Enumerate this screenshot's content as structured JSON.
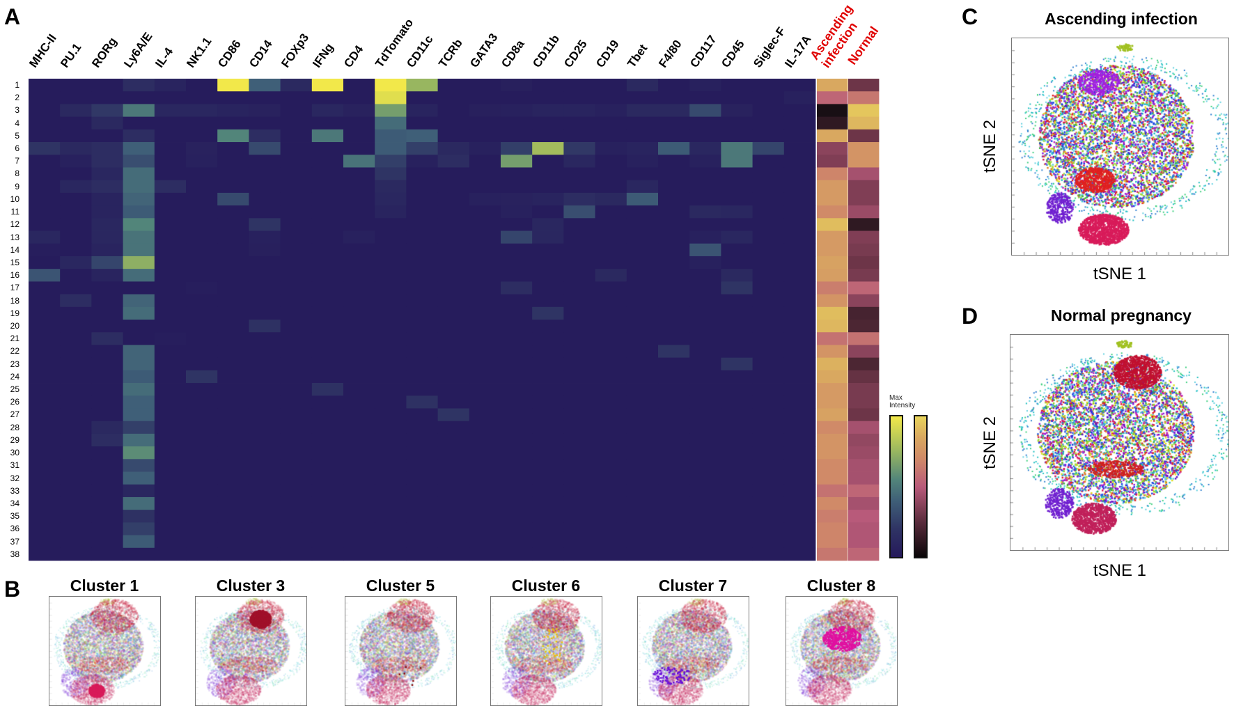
{
  "panels": {
    "a": "A",
    "b": "B",
    "c": "C",
    "d": "D"
  },
  "chart_data": [
    {
      "type": "heatmap",
      "title": "",
      "columns": [
        "MHC-II",
        "PU.1",
        "RORg",
        "Ly6A/E",
        "IL-4",
        "NK1.1",
        "CD86",
        "CD14",
        "FOXp3",
        "IFNg",
        "CD4",
        "TdTomato",
        "CD11c",
        "TCRb",
        "GATA3",
        "CD8a",
        "CD11b",
        "CD25",
        "CD19",
        "Tbet",
        "F4/80",
        "CD117",
        "CD45",
        "Siglec-F",
        "IL-17A"
      ],
      "rows": [
        "1",
        "2",
        "3",
        "4",
        "5",
        "6",
        "7",
        "8",
        "9",
        "10",
        "11",
        "12",
        "13",
        "14",
        "15",
        "16",
        "17",
        "18",
        "19",
        "20",
        "21",
        "22",
        "23",
        "24",
        "25",
        "26",
        "27",
        "28",
        "29",
        "30",
        "31",
        "32",
        "33",
        "34",
        "35",
        "36",
        "37",
        "38"
      ],
      "value_range": [
        0,
        1
      ],
      "baseline_value": 0.02,
      "cells_row_col_value": [
        [
          1,
          3,
          0.15
        ],
        [
          1,
          4,
          0.08
        ],
        [
          1,
          6,
          1.0
        ],
        [
          1,
          7,
          0.4
        ],
        [
          1,
          8,
          0.12
        ],
        [
          1,
          9,
          1.0
        ],
        [
          1,
          11,
          1.0
        ],
        [
          1,
          12,
          0.75
        ],
        [
          1,
          15,
          0.05
        ],
        [
          1,
          19,
          0.12
        ],
        [
          1,
          21,
          0.06
        ],
        [
          2,
          11,
          0.95
        ],
        [
          2,
          24,
          0.06
        ],
        [
          3,
          1,
          0.12
        ],
        [
          3,
          2,
          0.22
        ],
        [
          3,
          3,
          0.5
        ],
        [
          3,
          4,
          0.1
        ],
        [
          3,
          5,
          0.1
        ],
        [
          3,
          6,
          0.08
        ],
        [
          3,
          7,
          0.07
        ],
        [
          3,
          9,
          0.1
        ],
        [
          3,
          10,
          0.07
        ],
        [
          3,
          11,
          0.65
        ],
        [
          3,
          12,
          0.08
        ],
        [
          3,
          14,
          0.05
        ],
        [
          3,
          15,
          0.06
        ],
        [
          3,
          16,
          0.08
        ],
        [
          3,
          17,
          0.08
        ],
        [
          3,
          18,
          0.06
        ],
        [
          3,
          19,
          0.12
        ],
        [
          3,
          20,
          0.12
        ],
        [
          3,
          21,
          0.3
        ],
        [
          3,
          22,
          0.07
        ],
        [
          4,
          2,
          0.12
        ],
        [
          4,
          11,
          0.45
        ],
        [
          5,
          3,
          0.15
        ],
        [
          5,
          6,
          0.55
        ],
        [
          5,
          7,
          0.15
        ],
        [
          5,
          9,
          0.5
        ],
        [
          5,
          11,
          0.38
        ],
        [
          5,
          12,
          0.4
        ],
        [
          6,
          0,
          0.2
        ],
        [
          6,
          1,
          0.12
        ],
        [
          6,
          2,
          0.15
        ],
        [
          6,
          3,
          0.4
        ],
        [
          6,
          5,
          0.07
        ],
        [
          6,
          7,
          0.3
        ],
        [
          6,
          11,
          0.38
        ],
        [
          6,
          12,
          0.25
        ],
        [
          6,
          13,
          0.12
        ],
        [
          6,
          14,
          0.06
        ],
        [
          6,
          15,
          0.25
        ],
        [
          6,
          16,
          0.78
        ],
        [
          6,
          17,
          0.22
        ],
        [
          6,
          18,
          0.06
        ],
        [
          6,
          19,
          0.08
        ],
        [
          6,
          20,
          0.38
        ],
        [
          6,
          21,
          0.1
        ],
        [
          6,
          22,
          0.5
        ],
        [
          6,
          23,
          0.28
        ],
        [
          7,
          1,
          0.06
        ],
        [
          7,
          2,
          0.15
        ],
        [
          7,
          3,
          0.32
        ],
        [
          7,
          5,
          0.06
        ],
        [
          7,
          10,
          0.48
        ],
        [
          7,
          11,
          0.25
        ],
        [
          7,
          12,
          0.06
        ],
        [
          7,
          13,
          0.15
        ],
        [
          7,
          15,
          0.65
        ],
        [
          7,
          17,
          0.1
        ],
        [
          7,
          19,
          0.06
        ],
        [
          7,
          21,
          0.06
        ],
        [
          7,
          22,
          0.5
        ],
        [
          8,
          2,
          0.1
        ],
        [
          8,
          3,
          0.45
        ],
        [
          8,
          11,
          0.2
        ],
        [
          9,
          1,
          0.1
        ],
        [
          9,
          2,
          0.15
        ],
        [
          9,
          3,
          0.45
        ],
        [
          9,
          4,
          0.15
        ],
        [
          9,
          11,
          0.12
        ],
        [
          9,
          19,
          0.1
        ],
        [
          10,
          2,
          0.08
        ],
        [
          10,
          3,
          0.42
        ],
        [
          10,
          6,
          0.3
        ],
        [
          10,
          11,
          0.1
        ],
        [
          10,
          14,
          0.06
        ],
        [
          10,
          15,
          0.07
        ],
        [
          10,
          16,
          0.08
        ],
        [
          10,
          17,
          0.15
        ],
        [
          10,
          18,
          0.12
        ],
        [
          10,
          19,
          0.38
        ],
        [
          11,
          2,
          0.08
        ],
        [
          11,
          3,
          0.38
        ],
        [
          11,
          11,
          0.08
        ],
        [
          11,
          15,
          0.06
        ],
        [
          11,
          17,
          0.32
        ],
        [
          11,
          21,
          0.12
        ],
        [
          11,
          22,
          0.1
        ],
        [
          12,
          2,
          0.1
        ],
        [
          12,
          3,
          0.55
        ],
        [
          12,
          7,
          0.2
        ],
        [
          12,
          16,
          0.1
        ],
        [
          13,
          0,
          0.1
        ],
        [
          13,
          2,
          0.1
        ],
        [
          13,
          3,
          0.48
        ],
        [
          13,
          7,
          0.06
        ],
        [
          13,
          10,
          0.06
        ],
        [
          13,
          15,
          0.28
        ],
        [
          13,
          16,
          0.1
        ],
        [
          13,
          21,
          0.06
        ],
        [
          13,
          22,
          0.1
        ],
        [
          14,
          0,
          0.04
        ],
        [
          14,
          2,
          0.08
        ],
        [
          14,
          3,
          0.48
        ],
        [
          14,
          7,
          0.05
        ],
        [
          14,
          21,
          0.35
        ],
        [
          15,
          1,
          0.1
        ],
        [
          15,
          2,
          0.28
        ],
        [
          15,
          3,
          0.72
        ],
        [
          15,
          21,
          0.06
        ],
        [
          16,
          0,
          0.35
        ],
        [
          16,
          2,
          0.08
        ],
        [
          16,
          3,
          0.45
        ],
        [
          16,
          18,
          0.12
        ],
        [
          16,
          22,
          0.12
        ],
        [
          17,
          5,
          0.04
        ],
        [
          17,
          15,
          0.15
        ],
        [
          17,
          22,
          0.2
        ],
        [
          18,
          1,
          0.15
        ],
        [
          18,
          3,
          0.42
        ],
        [
          19,
          3,
          0.45
        ],
        [
          19,
          16,
          0.2
        ],
        [
          20,
          7,
          0.18
        ],
        [
          21,
          2,
          0.15
        ],
        [
          21,
          4,
          0.04
        ],
        [
          22,
          3,
          0.42
        ],
        [
          22,
          20,
          0.2
        ],
        [
          23,
          3,
          0.42
        ],
        [
          23,
          22,
          0.2
        ],
        [
          24,
          3,
          0.38
        ],
        [
          24,
          5,
          0.2
        ],
        [
          25,
          3,
          0.45
        ],
        [
          25,
          9,
          0.18
        ],
        [
          26,
          3,
          0.4
        ],
        [
          26,
          12,
          0.18
        ],
        [
          27,
          3,
          0.4
        ],
        [
          27,
          13,
          0.2
        ],
        [
          28,
          2,
          0.12
        ],
        [
          28,
          3,
          0.25
        ],
        [
          29,
          2,
          0.15
        ],
        [
          29,
          3,
          0.45
        ],
        [
          30,
          3,
          0.58
        ],
        [
          31,
          3,
          0.3
        ],
        [
          32,
          3,
          0.4
        ],
        [
          33,
          3,
          0.1
        ],
        [
          34,
          3,
          0.45
        ],
        [
          35,
          3,
          0.18
        ],
        [
          36,
          3,
          0.25
        ],
        [
          37,
          3,
          0.38
        ]
      ],
      "group_columns": [
        {
          "label": "Ascending infection",
          "color": "#e00000",
          "values": [
            0.85,
            0.55,
            0.02,
            0.1,
            0.85,
            0.38,
            0.35,
            0.68,
            0.78,
            0.78,
            0.7,
            0.92,
            0.78,
            0.78,
            0.82,
            0.8,
            0.65,
            0.75,
            0.92,
            0.9,
            0.6,
            0.75,
            0.88,
            0.85,
            0.78,
            0.78,
            0.82,
            0.7,
            0.75,
            0.75,
            0.7,
            0.7,
            0.6,
            0.7,
            0.65,
            0.68,
            0.68,
            0.62
          ]
        },
        {
          "label": "Normal",
          "color": "#e00000",
          "values": [
            0.3,
            0.62,
            0.95,
            0.9,
            0.3,
            0.75,
            0.75,
            0.45,
            0.35,
            0.35,
            0.42,
            0.1,
            0.35,
            0.33,
            0.3,
            0.33,
            0.55,
            0.38,
            0.18,
            0.2,
            0.6,
            0.38,
            0.2,
            0.28,
            0.33,
            0.33,
            0.3,
            0.45,
            0.4,
            0.42,
            0.45,
            0.45,
            0.55,
            0.45,
            0.5,
            0.48,
            0.48,
            0.55
          ]
        }
      ],
      "legend": {
        "label": "Max Intensity",
        "colormaps": [
          "viridis",
          "magma"
        ]
      }
    },
    {
      "type": "scatter",
      "title": "Ascending infection",
      "xlabel": "tSNE 1",
      "ylabel": "tSNE 2"
    },
    {
      "type": "scatter",
      "title": "Normal pregnancy",
      "xlabel": "tSNE 1",
      "ylabel": "tSNE 2"
    }
  ],
  "clusters": [
    {
      "label": "Cluster 1",
      "color": "#d81b5a"
    },
    {
      "label": "Cluster 3",
      "color": "#a0102a"
    },
    {
      "label": "Cluster 5",
      "color": "#8a1010"
    },
    {
      "label": "Cluster 6",
      "color": "#e8c010"
    },
    {
      "label": "Cluster 7",
      "color": "#6a10d8"
    },
    {
      "label": "Cluster 8",
      "color": "#e010a0"
    }
  ]
}
